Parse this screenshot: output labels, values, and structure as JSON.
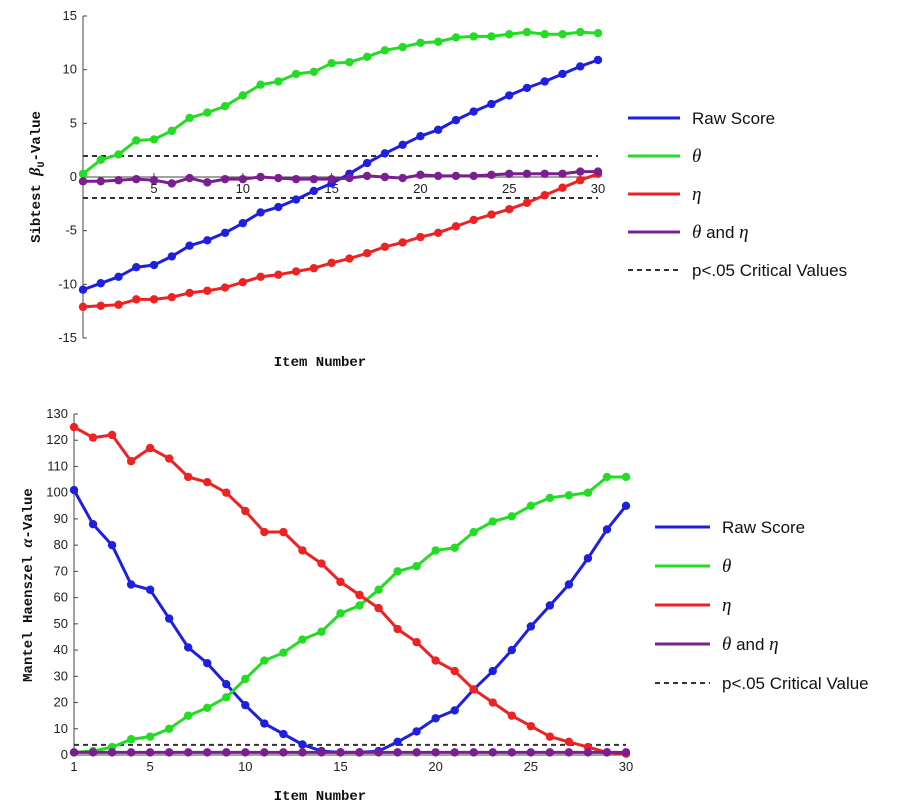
{
  "chart_data": [
    {
      "type": "line",
      "xlabel": "Item Number",
      "ylabel_prefix": "Sibtest ",
      "ylabel_symbol": "β",
      "ylabel_sub": "U",
      "ylabel_suffix": "-Value",
      "xlim": [
        1,
        30
      ],
      "ylim": [
        -15,
        15
      ],
      "xticks": [
        "5",
        "10",
        "15",
        "20",
        "25",
        "30"
      ],
      "yticks": [
        "15",
        "10",
        "5",
        "0",
        "-5",
        "-10",
        "-15"
      ],
      "x": [
        1,
        2,
        3,
        4,
        5,
        6,
        7,
        8,
        9,
        10,
        11,
        12,
        13,
        14,
        15,
        16,
        17,
        18,
        19,
        20,
        21,
        22,
        23,
        24,
        25,
        26,
        27,
        28,
        29,
        30
      ],
      "series": [
        {
          "name": "Raw Score",
          "color": "#1f1fe0",
          "values": [
            -10.5,
            -9.9,
            -9.3,
            -8.4,
            -8.2,
            -7.4,
            -6.4,
            -5.9,
            -5.2,
            -4.3,
            -3.3,
            -2.8,
            -2.1,
            -1.3,
            -0.6,
            0.3,
            1.3,
            2.2,
            3.0,
            3.8,
            4.4,
            5.3,
            6.1,
            6.8,
            7.6,
            8.3,
            8.9,
            9.6,
            10.3,
            10.9
          ]
        },
        {
          "name": "θ",
          "color": "#22dd22",
          "values": [
            0.3,
            1.6,
            2.1,
            3.4,
            3.5,
            4.3,
            5.5,
            6.0,
            6.6,
            7.6,
            8.6,
            8.9,
            9.6,
            9.8,
            10.6,
            10.7,
            11.2,
            11.8,
            12.1,
            12.5,
            12.6,
            13.0,
            13.1,
            13.1,
            13.3,
            13.5,
            13.3,
            13.3,
            13.5,
            13.4
          ]
        },
        {
          "name": "η",
          "color": "#ee2222",
          "values": [
            -12.1,
            -12.0,
            -11.9,
            -11.4,
            -11.4,
            -11.2,
            -10.8,
            -10.6,
            -10.3,
            -9.8,
            -9.3,
            -9.1,
            -8.8,
            -8.5,
            -8.0,
            -7.6,
            -7.1,
            -6.5,
            -6.1,
            -5.6,
            -5.2,
            -4.6,
            -4.0,
            -3.5,
            -3.0,
            -2.4,
            -1.7,
            -1.0,
            -0.3,
            0.3
          ]
        },
        {
          "name": "θ and η",
          "color": "#7a1f8f",
          "values": [
            -0.4,
            -0.4,
            -0.3,
            -0.2,
            -0.3,
            -0.6,
            -0.1,
            -0.5,
            -0.2,
            -0.2,
            0.0,
            -0.1,
            -0.2,
            -0.2,
            -0.2,
            -0.1,
            0.1,
            0.0,
            -0.1,
            0.2,
            0.1,
            0.1,
            0.1,
            0.2,
            0.3,
            0.3,
            0.3,
            0.3,
            0.5,
            0.5
          ]
        }
      ],
      "critical_lines": [
        1.96,
        -1.96
      ],
      "critical_label": "p<.05 Critical Values",
      "critical_color": "#333333"
    },
    {
      "type": "line",
      "xlabel": "Item Number",
      "ylabel_prefix": "Mantel Haenszel ",
      "ylabel_symbol": "α",
      "ylabel_sub": "",
      "ylabel_suffix": "-Value",
      "xlim": [
        1,
        30
      ],
      "ylim": [
        0,
        130
      ],
      "xticks": [
        "1",
        "5",
        "10",
        "15",
        "20",
        "25",
        "30"
      ],
      "yticks": [
        "130",
        "120",
        "110",
        "100",
        "90",
        "80",
        "70",
        "60",
        "50",
        "40",
        "30",
        "20",
        "10",
        "0"
      ],
      "x": [
        1,
        2,
        3,
        4,
        5,
        6,
        7,
        8,
        9,
        10,
        11,
        12,
        13,
        14,
        15,
        16,
        17,
        18,
        19,
        20,
        21,
        22,
        23,
        24,
        25,
        26,
        27,
        28,
        29,
        30
      ],
      "series": [
        {
          "name": "Raw Score",
          "color": "#1f1fe0",
          "values": [
            101,
            88,
            80,
            65,
            63,
            52,
            41,
            35,
            27,
            19,
            12,
            8,
            4,
            1.5,
            1,
            1,
            1.5,
            5,
            9,
            14,
            17,
            25,
            32,
            40,
            49,
            57,
            65,
            75,
            86,
            95
          ]
        },
        {
          "name": "θ",
          "color": "#22dd22",
          "values": [
            1,
            1.5,
            3,
            6,
            7,
            10,
            15,
            18,
            22,
            29,
            36,
            39,
            44,
            47,
            54,
            57,
            63,
            70,
            72,
            78,
            79,
            85,
            89,
            91,
            95,
            98,
            99,
            100,
            106,
            106
          ]
        },
        {
          "name": "η",
          "color": "#ee2222",
          "values": [
            125,
            121,
            122,
            112,
            117,
            113,
            106,
            104,
            100,
            93,
            85,
            85,
            78,
            73,
            66,
            61,
            56,
            48,
            43,
            36,
            32,
            25,
            20,
            15,
            11,
            7,
            5,
            3,
            1,
            0.5
          ]
        },
        {
          "name": "θ and η",
          "color": "#7a1f8f",
          "values": [
            1,
            1,
            1,
            1,
            1,
            1,
            1,
            1,
            1,
            1,
            1,
            1,
            1,
            1,
            1,
            1,
            1,
            1,
            1,
            1,
            1,
            1,
            1,
            1,
            1,
            1,
            1,
            1,
            1,
            1
          ]
        }
      ],
      "critical_lines": [
        3.84
      ],
      "critical_label": "p<.05 Critical Value",
      "critical_color": "#333333"
    }
  ]
}
